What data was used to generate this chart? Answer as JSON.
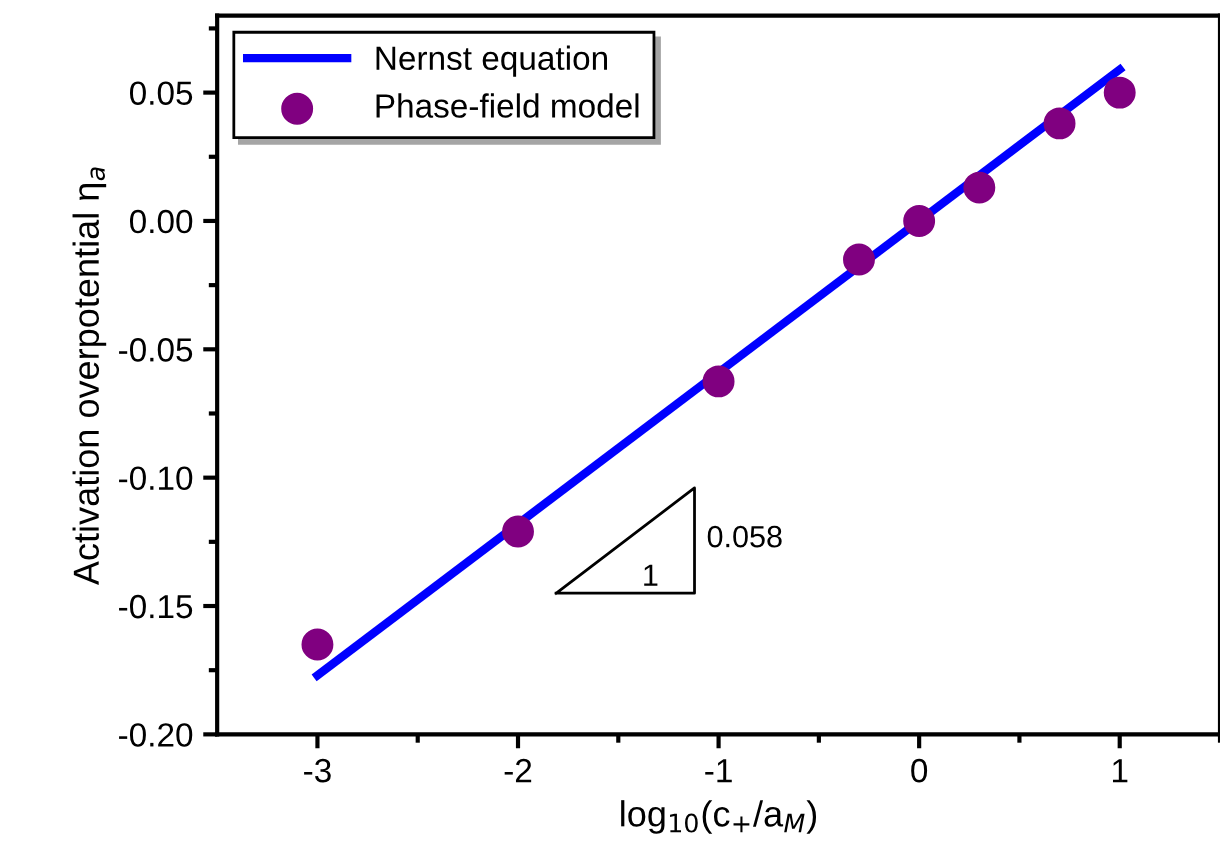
{
  "chart_data": {
    "type": "scatter",
    "xlabel": "log$_{10}$(c$_{+}$/a$_{M}$)",
    "ylabel": "Activation overpotential η$_{a}$",
    "xlim": [
      -3.5,
      1.5
    ],
    "xticks": [
      -3,
      -2,
      -1,
      0,
      1
    ],
    "ylim": [
      -0.2,
      0.08
    ],
    "yticks": [
      {
        "value": -0.2,
        "label": "-0.20"
      },
      {
        "value": -0.15,
        "label": "-0.15"
      },
      {
        "value": -0.1,
        "label": "-0.10"
      },
      {
        "value": -0.05,
        "label": "-0.05"
      },
      {
        "value": 0,
        "label": "0.00"
      },
      {
        "value": 0.05,
        "label": "0.05"
      }
    ],
    "grid": false,
    "legend": "top left",
    "series": [
      {
        "name": "Nernst equation",
        "type": "line",
        "color": "#0000ff",
        "x": [
          -3,
          1
        ],
        "values": [
          -0.177,
          0.059
        ],
        "marker": "none",
        "line_style": "solid"
      },
      {
        "name": "Phase-field model",
        "color": "#800080",
        "x": [
          -3,
          -2,
          -1,
          -0.3,
          0,
          0.3,
          0.7,
          1
        ],
        "values": [
          -0.165,
          -0.121,
          -0.0625,
          -0.015,
          0,
          0.013,
          0.038,
          0.05
        ],
        "marker": "circle"
      }
    ],
    "annotations": [
      "1",
      "0.058"
    ]
  }
}
